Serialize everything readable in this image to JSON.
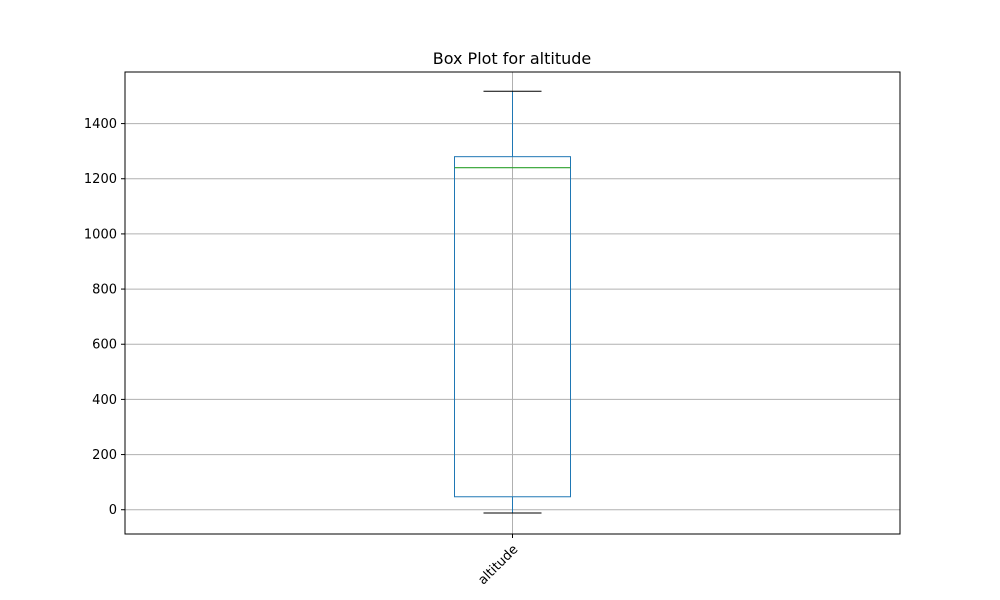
{
  "chart_data": {
    "type": "box",
    "title": "Box Plot for altitude",
    "xlabel": "",
    "ylabel": "",
    "categories": [
      "altitude"
    ],
    "series": [
      {
        "category": "altitude",
        "whisker_low": -12,
        "q1": 47,
        "median": 1240,
        "q3": 1280,
        "whisker_high": 1517
      }
    ],
    "ylim": [
      -88,
      1587
    ],
    "yticks": [
      0,
      200,
      400,
      600,
      800,
      1000,
      1200,
      1400
    ],
    "ytick_labels": [
      "0",
      "200",
      "400",
      "600",
      "800",
      "1000",
      "1200",
      "1400"
    ],
    "xtick_rotation": 45,
    "grid": true,
    "legend": "none",
    "colors": {
      "box": "#1f77b4",
      "median": "#2ca02c",
      "whisker": "#1f77b4",
      "cap": "#000000",
      "grid": "#b0b0b0",
      "axes": "#000000"
    }
  }
}
